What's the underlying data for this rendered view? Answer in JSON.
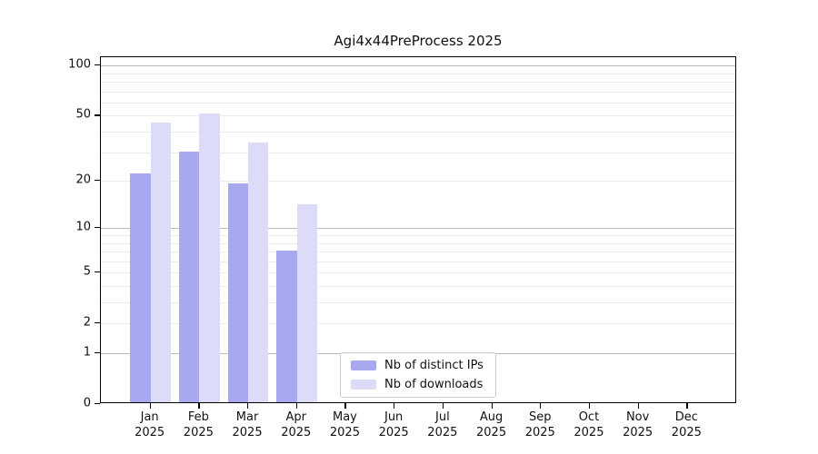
{
  "title": "Agi4x44PreProcess 2025",
  "colors": {
    "distinct_ips": "#a8a8f0",
    "downloads": "#dcdcf8",
    "grid_minor": "#ebebeb",
    "grid_major": "#b8b8b8",
    "axis": "#000000",
    "legend_border": "#cccccc",
    "text": "#111111"
  },
  "legend": {
    "entries": [
      {
        "label": "Nb of distinct IPs",
        "color": "#a8a8f0"
      },
      {
        "label": "Nb of downloads",
        "color": "#dcdcf8"
      }
    ]
  },
  "chart_data": {
    "type": "bar",
    "title": "Agi4x44PreProcess 2025",
    "categories": [
      "Jan 2025",
      "Feb 2025",
      "Mar 2025",
      "Apr 2025",
      "May 2025",
      "Jun 2025",
      "Jul 2025",
      "Aug 2025",
      "Sep 2025",
      "Oct 2025",
      "Nov 2025",
      "Dec 2025"
    ],
    "series": [
      {
        "name": "Nb of distinct IPs",
        "color": "#a8a8f0",
        "values": [
          22,
          30,
          19,
          7,
          0,
          0,
          0,
          0,
          0,
          0,
          0,
          0
        ]
      },
      {
        "name": "Nb of downloads",
        "color": "#dcdcf8",
        "values": [
          45,
          51,
          34,
          14,
          0,
          0,
          0,
          0,
          0,
          0,
          0,
          0
        ]
      }
    ],
    "xlabel": "",
    "ylabel": "",
    "y_axis": {
      "scale": "log10(1+y)",
      "ticks": [
        0,
        1,
        2,
        5,
        10,
        20,
        50,
        100
      ],
      "tick_labels": [
        "0",
        "1",
        "2",
        "5",
        "10",
        "20",
        "50",
        "100"
      ],
      "major_gridlines": [
        1,
        10,
        100
      ],
      "minor_gridlines": [
        2,
        3,
        4,
        5,
        6,
        7,
        8,
        9,
        20,
        30,
        40,
        50,
        60,
        70,
        80,
        90
      ],
      "ylim": [
        0,
        110
      ]
    },
    "legend_position": "bottom-center",
    "grid": true
  }
}
